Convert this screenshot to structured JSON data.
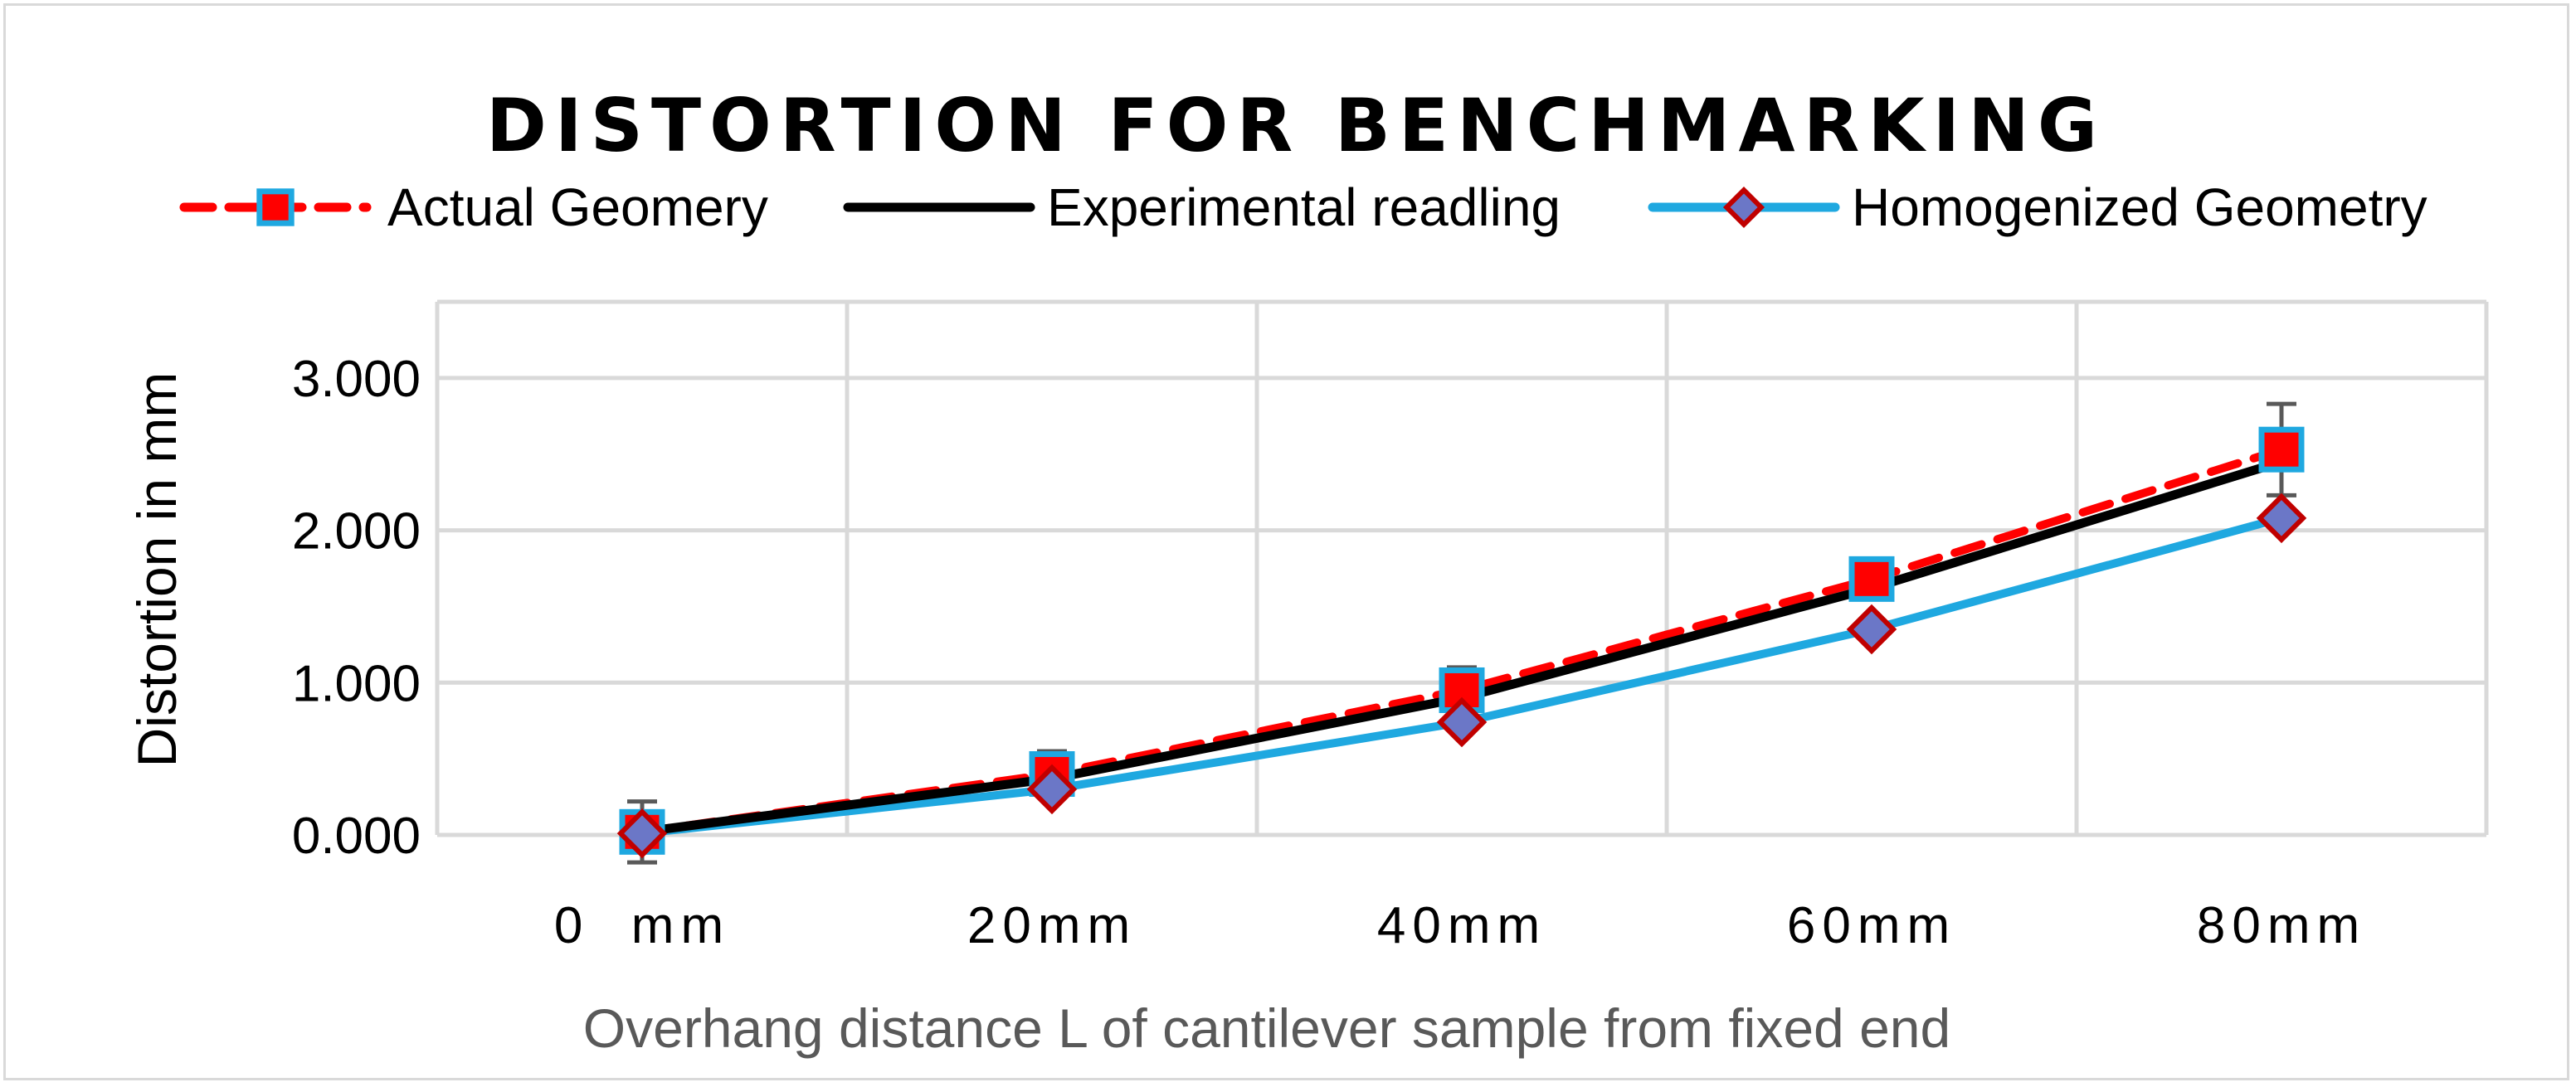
{
  "chart_data": {
    "type": "line",
    "title": "DISTORTION FOR BENCHMARKING",
    "xlabel": "Overhang distance L of cantilever sample from fixed end",
    "ylabel": "Distortion in mm",
    "categories": [
      "0  mm",
      "20mm",
      "40mm",
      "60mm",
      "80mm"
    ],
    "yticks": [
      "0.000",
      "1.000",
      "2.000",
      "3.000"
    ],
    "ylim": [
      0,
      3.5
    ],
    "grid": true,
    "legend_position": "top",
    "series": [
      {
        "name": "Actual Geomery",
        "values": [
          0.02,
          0.4,
          0.95,
          1.68,
          2.53
        ],
        "line_color": "#ff0000",
        "line_style": "dashed",
        "marker": "square",
        "marker_fill": "#ff0000",
        "marker_edge": "#1fa8e0",
        "error_bars": [
          0.2,
          0.15,
          0.15,
          0,
          0.3
        ]
      },
      {
        "name": "Experimental readling",
        "values": [
          0.02,
          0.37,
          0.9,
          1.62,
          2.45
        ],
        "line_color": "#000000",
        "line_style": "solid",
        "marker": "none"
      },
      {
        "name": "Homogenized Geometry",
        "values": [
          0.01,
          0.3,
          0.74,
          1.35,
          2.08
        ],
        "line_color": "#1fa8e0",
        "line_style": "solid",
        "marker": "diamond",
        "marker_fill": "#6b77c7",
        "marker_edge": "#c00000"
      }
    ]
  }
}
